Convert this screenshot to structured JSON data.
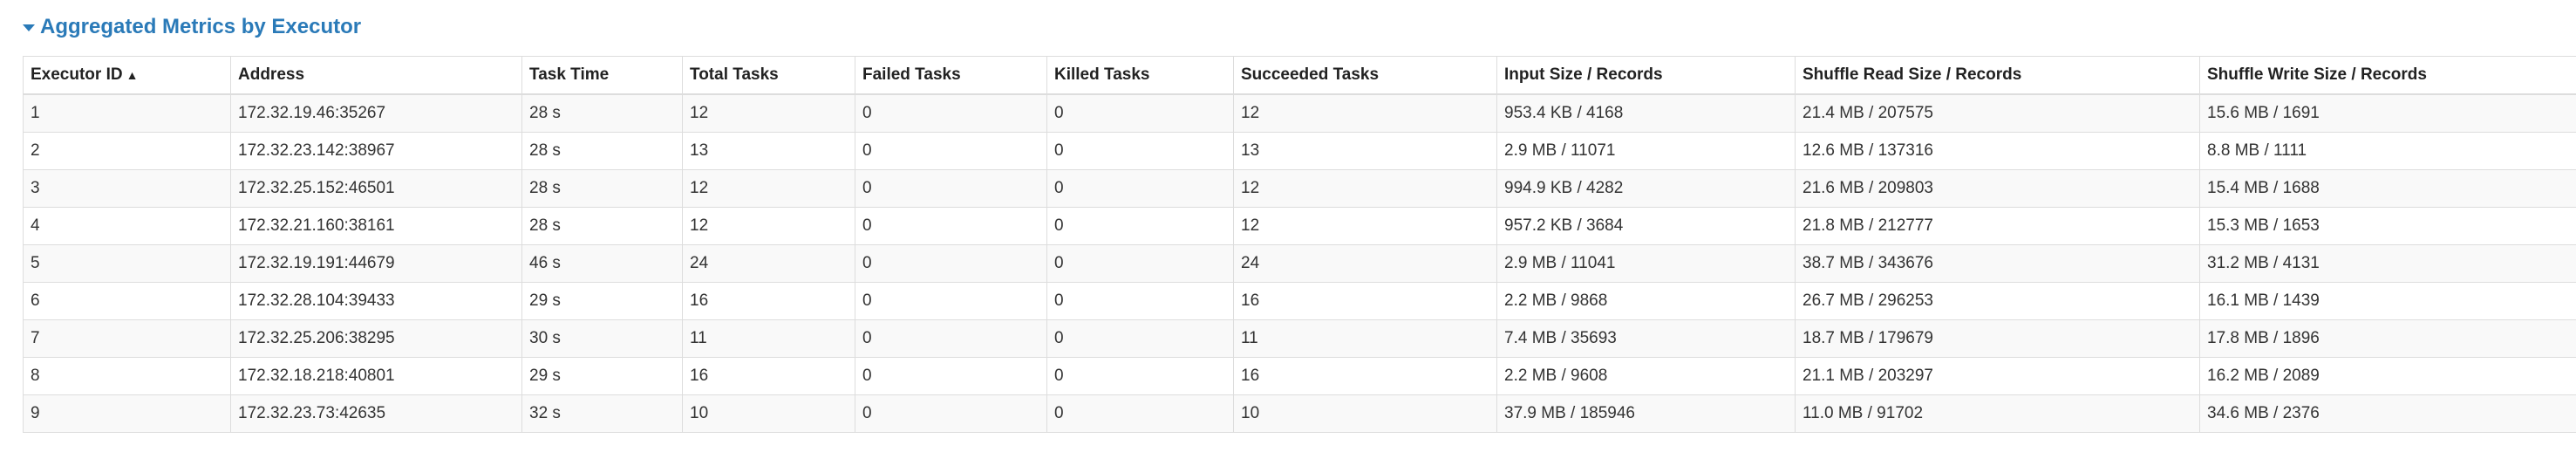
{
  "section": {
    "title": "Aggregated Metrics by Executor"
  },
  "table": {
    "sort_indicator": "▲",
    "headers": [
      "Executor ID",
      "Address",
      "Task Time",
      "Total Tasks",
      "Failed Tasks",
      "Killed Tasks",
      "Succeeded Tasks",
      "Input Size / Records",
      "Shuffle Read Size / Records",
      "Shuffle Write Size / Records"
    ],
    "rows": [
      [
        "1",
        "172.32.19.46:35267",
        "28 s",
        "12",
        "0",
        "0",
        "12",
        "953.4 KB / 4168",
        "21.4 MB / 207575",
        "15.6 MB / 1691"
      ],
      [
        "2",
        "172.32.23.142:38967",
        "28 s",
        "13",
        "0",
        "0",
        "13",
        "2.9 MB / 11071",
        "12.6 MB / 137316",
        "8.8 MB / 1111"
      ],
      [
        "3",
        "172.32.25.152:46501",
        "28 s",
        "12",
        "0",
        "0",
        "12",
        "994.9 KB / 4282",
        "21.6 MB / 209803",
        "15.4 MB / 1688"
      ],
      [
        "4",
        "172.32.21.160:38161",
        "28 s",
        "12",
        "0",
        "0",
        "12",
        "957.2 KB / 3684",
        "21.8 MB / 212777",
        "15.3 MB / 1653"
      ],
      [
        "5",
        "172.32.19.191:44679",
        "46 s",
        "24",
        "0",
        "0",
        "24",
        "2.9 MB / 11041",
        "38.7 MB / 343676",
        "31.2 MB / 4131"
      ],
      [
        "6",
        "172.32.28.104:39433",
        "29 s",
        "16",
        "0",
        "0",
        "16",
        "2.2 MB / 9868",
        "26.7 MB / 296253",
        "16.1 MB / 1439"
      ],
      [
        "7",
        "172.32.25.206:38295",
        "30 s",
        "11",
        "0",
        "0",
        "11",
        "7.4 MB / 35693",
        "18.7 MB / 179679",
        "17.8 MB / 1896"
      ],
      [
        "8",
        "172.32.18.218:40801",
        "29 s",
        "16",
        "0",
        "0",
        "16",
        "2.2 MB / 9608",
        "21.1 MB / 203297",
        "16.2 MB / 2089"
      ],
      [
        "9",
        "172.32.23.73:42635",
        "32 s",
        "10",
        "0",
        "0",
        "10",
        "37.9 MB / 185946",
        "11.0 MB / 91702",
        "34.6 MB / 2376"
      ]
    ]
  },
  "colors": {
    "title": "#2a7ab8",
    "border": "#dddddd",
    "stripe": "#f9f9f9"
  }
}
